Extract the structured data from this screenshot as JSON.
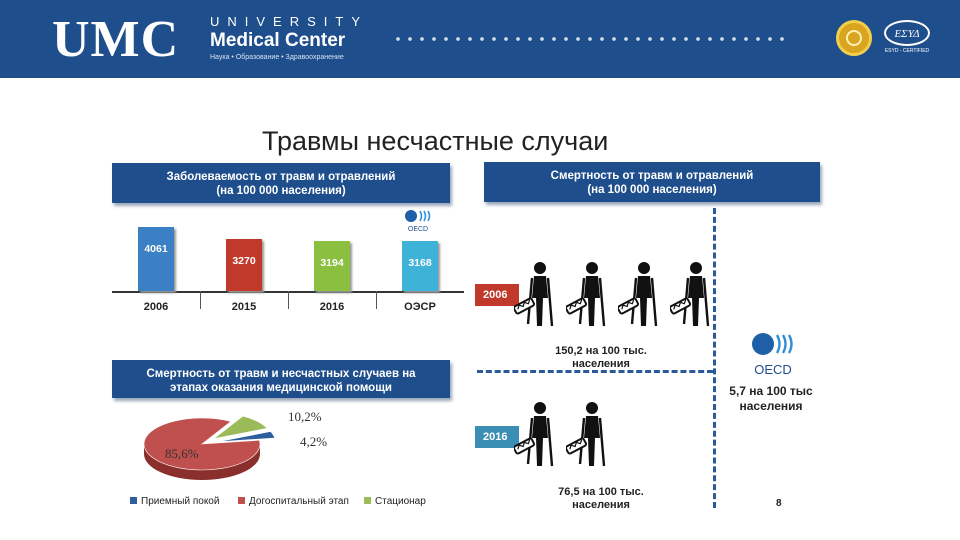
{
  "header": {
    "logo_text": "UMC",
    "university": "UNIVERSITY",
    "medical_center": "Medical Center",
    "tagline": "Наука • Образование • Здравоохранение",
    "esyd_sub": "ESYD - CERTIFIED",
    "colors": {
      "header_bg": "#1f4e8c"
    }
  },
  "title": "Травмы несчастные случаи",
  "banners": {
    "incidence": {
      "line1": "Заболеваемость от травм и отравлений",
      "line2": "(на 100 000 населения)"
    },
    "mortality": {
      "line1": "Смертность от травм и отравлений",
      "line2": "(на 100 000 населения)"
    },
    "stages": {
      "line1": "Смертность от травм и несчастных случаев на",
      "line2": "этапах оказания медицинской помощи"
    }
  },
  "chart_data": [
    {
      "type": "bar",
      "categories": [
        "2006",
        "2015",
        "2016",
        "ОЭСР"
      ],
      "values": [
        4061,
        3270,
        3194,
        3168
      ],
      "colors": [
        "#3b7fc4",
        "#c0392b",
        "#8bbf3f",
        "#3fb2d8"
      ],
      "ylim": [
        0,
        4061
      ]
    },
    {
      "type": "pie",
      "categories": [
        "Приемный покой",
        "Догоспитальный этап",
        "Стационар"
      ],
      "values": [
        4.2,
        85.6,
        10.2
      ],
      "value_labels": [
        "4,2%",
        "85,6%",
        "10,2%"
      ],
      "colors": [
        "#2e5e9e",
        "#c0504d",
        "#9bbb59"
      ]
    }
  ],
  "mortality": {
    "tag_2006": "2006",
    "tag_2016": "2016",
    "caption_2006": "150,2 на 100 тыс. населения",
    "caption_2016": "76,5 на 100 тыс. населения",
    "caption_oecd": "5,7 на 100 тыс населения",
    "figures_2006": 4,
    "figures_2016": 2
  },
  "oecd_label": "OECD",
  "page_number": "8"
}
